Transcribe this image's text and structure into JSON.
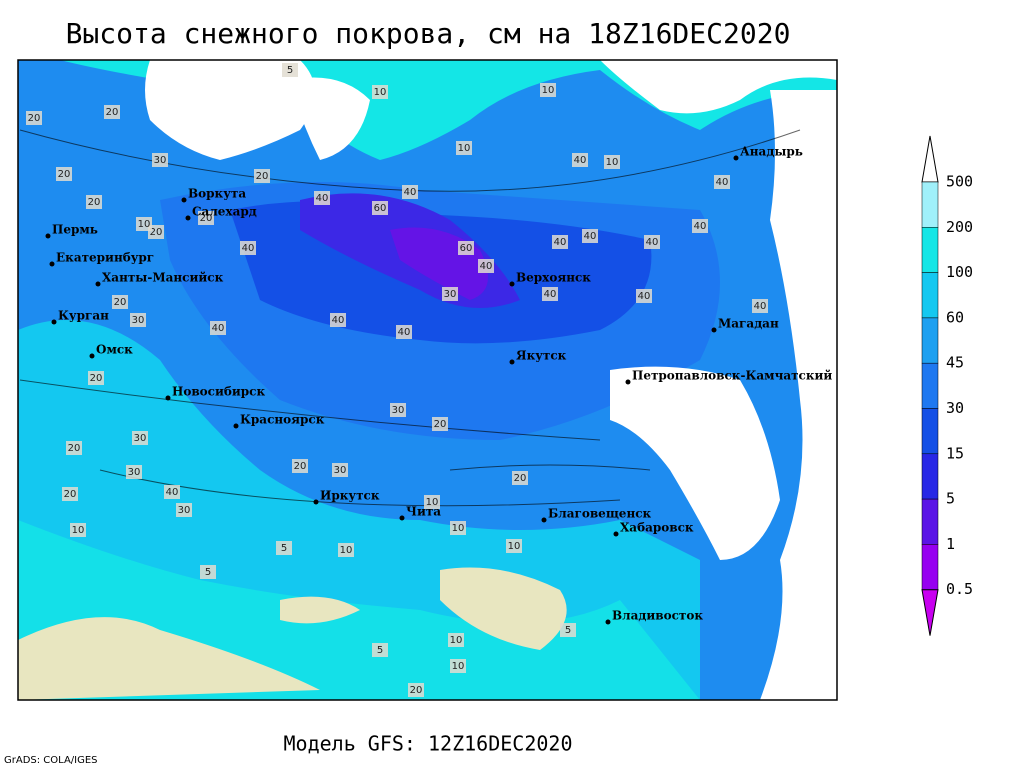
{
  "title": "Высота снежного покрова, см на 18Z16DEC2020",
  "footer": "Модель GFS: 12Z16DEC2020",
  "credit": "GrADS: COLA/IGES",
  "legend": {
    "levels": [
      0.5,
      1,
      5,
      15,
      30,
      45,
      60,
      100,
      200,
      500
    ],
    "colors": [
      "#ffffff",
      "#a0f0fa",
      "#14e6e6",
      "#14c8f0",
      "#1ea0f0",
      "#1e78f0",
      "#1450e6",
      "#2828e6",
      "#5a14e6",
      "#9600f0",
      "#c800f0"
    ]
  },
  "cities": [
    "Воркута",
    "Салехард",
    "Пермь",
    "Екатеринбург",
    "Ханты-Мансийск",
    "Курган",
    "Омск",
    "Новосибирск",
    "Красноярск",
    "Иркутск",
    "Чита",
    "Благовещенск",
    "Хабаровск",
    "Владивосток",
    "Якутск",
    "Верхоянск",
    "Магадан",
    "Петропавловск-Камчатский",
    "Анадырь"
  ],
  "contour_labels": [
    20,
    20,
    30,
    20,
    20,
    20,
    10,
    20,
    40,
    20,
    30,
    40,
    40,
    20,
    60,
    40,
    60,
    40,
    30,
    40,
    40,
    40,
    40,
    40,
    40,
    40,
    40,
    40,
    30,
    20,
    20,
    30,
    30,
    20,
    30,
    20,
    30,
    40,
    20,
    10,
    10,
    10,
    10,
    5,
    5,
    10,
    10,
    10,
    5,
    10,
    10,
    10,
    5,
    5,
    20,
    20,
    10,
    40,
    40
  ]
}
